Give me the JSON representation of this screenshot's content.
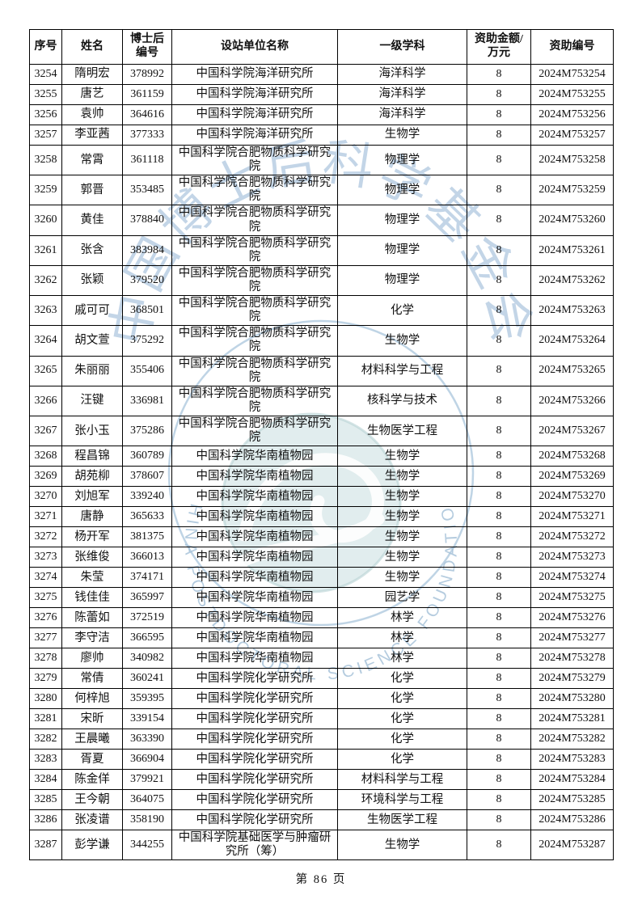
{
  "document": {
    "page_footer": "第 86 页"
  },
  "watermark": {
    "top_text": "中国博士后科学基金会",
    "arc_text": "CHINA POSTDOCTORAL SCIENCE FOUNDATION",
    "colors": {
      "seal_blue": "#9fbeda",
      "inner_teal": "#cfe2e4",
      "emblem_white": "#ffffff"
    }
  },
  "table": {
    "headers": [
      "序号",
      "姓名",
      "博士后\n编号",
      "设站单位名称",
      "一级学科",
      "资助金额/\n万元",
      "资助编号"
    ],
    "columns": [
      "seq",
      "name",
      "postdoc_no",
      "unit",
      "discipline",
      "amount",
      "grant_no"
    ],
    "rows": [
      [
        "3254",
        "隋明宏",
        "378992",
        "中国科学院海洋研究所",
        "海洋科学",
        "8",
        "2024M753254"
      ],
      [
        "3255",
        "唐艺",
        "361159",
        "中国科学院海洋研究所",
        "海洋科学",
        "8",
        "2024M753255"
      ],
      [
        "3256",
        "袁帅",
        "364616",
        "中国科学院海洋研究所",
        "海洋科学",
        "8",
        "2024M753256"
      ],
      [
        "3257",
        "李亚茜",
        "377333",
        "中国科学院海洋研究所",
        "生物学",
        "8",
        "2024M753257"
      ],
      [
        "3258",
        "常霄",
        "361118",
        "中国科学院合肥物质科学研究\n院",
        "物理学",
        "8",
        "2024M753258"
      ],
      [
        "3259",
        "郭晋",
        "353485",
        "中国科学院合肥物质科学研究\n院",
        "物理学",
        "8",
        "2024M753259"
      ],
      [
        "3260",
        "黄佳",
        "378840",
        "中国科学院合肥物质科学研究\n院",
        "物理学",
        "8",
        "2024M753260"
      ],
      [
        "3261",
        "张含",
        "383984",
        "中国科学院合肥物质科学研究\n院",
        "物理学",
        "8",
        "2024M753261"
      ],
      [
        "3262",
        "张颖",
        "379520",
        "中国科学院合肥物质科学研究\n院",
        "物理学",
        "8",
        "2024M753262"
      ],
      [
        "3263",
        "戚可可",
        "368501",
        "中国科学院合肥物质科学研究\n院",
        "化学",
        "8",
        "2024M753263"
      ],
      [
        "3264",
        "胡文萱",
        "375292",
        "中国科学院合肥物质科学研究\n院",
        "生物学",
        "8",
        "2024M753264"
      ],
      [
        "3265",
        "朱丽丽",
        "355406",
        "中国科学院合肥物质科学研究\n院",
        "材料科学与工程",
        "8",
        "2024M753265"
      ],
      [
        "3266",
        "汪键",
        "336981",
        "中国科学院合肥物质科学研究\n院",
        "核科学与技术",
        "8",
        "2024M753266"
      ],
      [
        "3267",
        "张小玉",
        "375286",
        "中国科学院合肥物质科学研究\n院",
        "生物医学工程",
        "8",
        "2024M753267"
      ],
      [
        "3268",
        "程昌锦",
        "360789",
        "中国科学院华南植物园",
        "生物学",
        "8",
        "2024M753268"
      ],
      [
        "3269",
        "胡苑柳",
        "378607",
        "中国科学院华南植物园",
        "生物学",
        "8",
        "2024M753269"
      ],
      [
        "3270",
        "刘旭军",
        "339240",
        "中国科学院华南植物园",
        "生物学",
        "8",
        "2024M753270"
      ],
      [
        "3271",
        "唐静",
        "365633",
        "中国科学院华南植物园",
        "生物学",
        "8",
        "2024M753271"
      ],
      [
        "3272",
        "杨开军",
        "381375",
        "中国科学院华南植物园",
        "生物学",
        "8",
        "2024M753272"
      ],
      [
        "3273",
        "张维俊",
        "366013",
        "中国科学院华南植物园",
        "生物学",
        "8",
        "2024M753273"
      ],
      [
        "3274",
        "朱莹",
        "374171",
        "中国科学院华南植物园",
        "生物学",
        "8",
        "2024M753274"
      ],
      [
        "3275",
        "钱佳佳",
        "365997",
        "中国科学院华南植物园",
        "园艺学",
        "8",
        "2024M753275"
      ],
      [
        "3276",
        "陈蕾如",
        "372519",
        "中国科学院华南植物园",
        "林学",
        "8",
        "2024M753276"
      ],
      [
        "3277",
        "李守洁",
        "366595",
        "中国科学院华南植物园",
        "林学",
        "8",
        "2024M753277"
      ],
      [
        "3278",
        "廖帅",
        "340982",
        "中国科学院华南植物园",
        "林学",
        "8",
        "2024M753278"
      ],
      [
        "3279",
        "常倩",
        "360241",
        "中国科学院化学研究所",
        "化学",
        "8",
        "2024M753279"
      ],
      [
        "3280",
        "何梓旭",
        "359395",
        "中国科学院化学研究所",
        "化学",
        "8",
        "2024M753280"
      ],
      [
        "3281",
        "宋昕",
        "339154",
        "中国科学院化学研究所",
        "化学",
        "8",
        "2024M753281"
      ],
      [
        "3282",
        "王晨曦",
        "363390",
        "中国科学院化学研究所",
        "化学",
        "8",
        "2024M753282"
      ],
      [
        "3283",
        "胥夏",
        "366904",
        "中国科学院化学研究所",
        "化学",
        "8",
        "2024M753283"
      ],
      [
        "3284",
        "陈金佯",
        "379921",
        "中国科学院化学研究所",
        "材料科学与工程",
        "8",
        "2024M753284"
      ],
      [
        "3285",
        "王今朝",
        "364075",
        "中国科学院化学研究所",
        "环境科学与工程",
        "8",
        "2024M753285"
      ],
      [
        "3286",
        "张凌谱",
        "358190",
        "中国科学院化学研究所",
        "生物医学工程",
        "8",
        "2024M753286"
      ],
      [
        "3287",
        "彭学谦",
        "344255",
        "中国科学院基础医学与肿瘤研\n究所（筹）",
        "生物学",
        "8",
        "2024M753287"
      ]
    ]
  }
}
